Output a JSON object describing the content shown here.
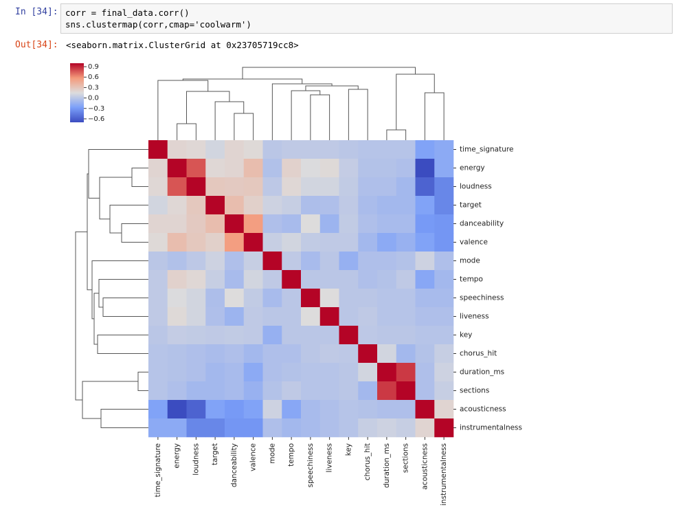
{
  "cells": [
    {
      "prompt": "In [34]:",
      "code": [
        "corr = final_data.corr()",
        "sns.clustermap(corr,cmap='coolwarm')"
      ]
    }
  ],
  "output": {
    "prompt": "Out[34]:",
    "text": "<seaborn.matrix.ClusterGrid at 0x23705719cc8>"
  },
  "chart_data": {
    "type": "heatmap",
    "colormap": "coolwarm",
    "labels": [
      "time_signature",
      "energy",
      "loudness",
      "target",
      "danceability",
      "valence",
      "mode",
      "tempo",
      "speechiness",
      "liveness",
      "key",
      "chorus_hit",
      "duration_ms",
      "sections",
      "acousticness",
      "instrumentalness"
    ],
    "matrix": [
      [
        1,
        0.2,
        0.18,
        0.1,
        0.2,
        0.17,
        0.0,
        0.02,
        0.02,
        0.02,
        0.0,
        -0.02,
        -0.02,
        -0.02,
        -0.25,
        -0.2
      ],
      [
        0.2,
        1,
        0.77,
        0.18,
        0.2,
        0.35,
        -0.04,
        0.22,
        0.14,
        0.17,
        0.04,
        -0.03,
        -0.03,
        -0.05,
        -0.72,
        -0.2
      ],
      [
        0.18,
        0.77,
        1,
        0.28,
        0.27,
        0.28,
        0.01,
        0.18,
        0.1,
        0.1,
        0.03,
        -0.05,
        -0.05,
        -0.1,
        -0.58,
        -0.4
      ],
      [
        0.1,
        0.18,
        0.28,
        1,
        0.35,
        0.23,
        0.08,
        0.05,
        -0.06,
        -0.05,
        0.02,
        -0.07,
        -0.1,
        -0.1,
        -0.25,
        -0.4
      ],
      [
        0.2,
        0.2,
        0.27,
        0.35,
        1,
        0.55,
        -0.05,
        -0.08,
        0.15,
        -0.13,
        0.03,
        -0.05,
        -0.08,
        -0.08,
        -0.3,
        -0.32
      ],
      [
        0.17,
        0.35,
        0.28,
        0.23,
        0.55,
        1,
        0.05,
        0.1,
        0.03,
        0.02,
        0.02,
        -0.1,
        -0.2,
        -0.15,
        -0.25,
        -0.32
      ],
      [
        0.0,
        -0.04,
        0.01,
        0.08,
        -0.05,
        0.05,
        1,
        0.02,
        -0.08,
        0.0,
        -0.16,
        -0.05,
        -0.05,
        -0.03,
        0.08,
        -0.05
      ],
      [
        0.02,
        0.22,
        0.18,
        0.05,
        -0.08,
        0.1,
        0.02,
        1,
        0.0,
        0.0,
        0.0,
        -0.05,
        -0.03,
        0.02,
        -0.22,
        -0.1
      ],
      [
        0.02,
        0.14,
        0.1,
        -0.06,
        0.15,
        0.03,
        -0.08,
        0.0,
        1,
        0.15,
        0.0,
        0.0,
        -0.02,
        -0.02,
        -0.08,
        -0.08
      ],
      [
        0.02,
        0.17,
        0.1,
        -0.05,
        -0.13,
        0.02,
        0.0,
        0.0,
        0.15,
        1,
        0.0,
        0.02,
        -0.02,
        -0.02,
        -0.05,
        -0.05
      ],
      [
        0.0,
        0.04,
        0.03,
        0.02,
        0.03,
        0.02,
        -0.16,
        0.0,
        0.0,
        0.0,
        1,
        0.01,
        0.0,
        0.0,
        -0.02,
        -0.02
      ],
      [
        -0.02,
        -0.03,
        -0.05,
        -0.07,
        -0.05,
        -0.1,
        -0.05,
        -0.05,
        0.0,
        0.02,
        0.01,
        1,
        0.1,
        -0.1,
        -0.03,
        0.05
      ],
      [
        -0.02,
        -0.03,
        -0.05,
        -0.1,
        -0.08,
        -0.2,
        -0.05,
        -0.03,
        -0.02,
        -0.02,
        0.0,
        0.1,
        1,
        0.85,
        -0.05,
        0.08
      ],
      [
        -0.02,
        -0.05,
        -0.1,
        -0.1,
        -0.08,
        -0.15,
        -0.03,
        0.02,
        -0.02,
        -0.02,
        0.0,
        -0.1,
        0.85,
        1,
        -0.05,
        0.05
      ],
      [
        -0.25,
        -0.72,
        -0.58,
        -0.25,
        -0.3,
        -0.25,
        0.08,
        -0.22,
        -0.08,
        -0.05,
        -0.02,
        -0.03,
        -0.05,
        -0.05,
        1,
        0.2
      ],
      [
        -0.2,
        -0.2,
        -0.4,
        -0.4,
        -0.32,
        -0.32,
        -0.05,
        -0.1,
        -0.08,
        -0.05,
        -0.02,
        0.05,
        0.08,
        0.05,
        0.2,
        1
      ]
    ],
    "clim": [
      -0.7,
      1.0
    ],
    "colorbar_ticks": [
      0.9,
      0.6,
      0.3,
      {
        "value": 0,
        "label": "0.0"
      },
      {
        "value": -0.3,
        "label": "−0.3"
      },
      {
        "value": -0.6,
        "label": "−0.6"
      }
    ]
  }
}
